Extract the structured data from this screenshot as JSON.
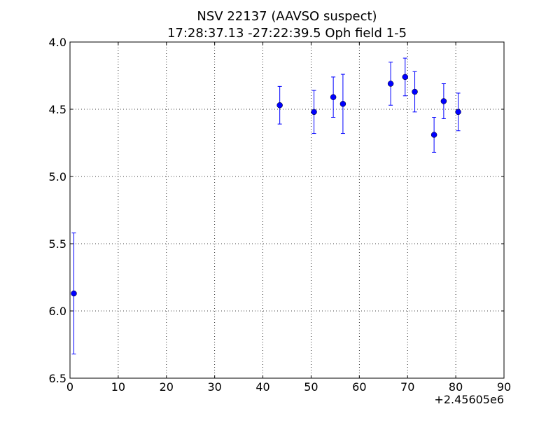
{
  "chart_data": {
    "type": "scatter",
    "title": "NSV 22137 (AAVSO suspect)",
    "subtitle": "17:28:37.13 -27:22:39.5 Oph field 1-5",
    "xlabel": "",
    "ylabel": "",
    "x_offset_label": "+2.45605e6",
    "xlim": [
      0,
      90
    ],
    "ylim": [
      6.5,
      4.0
    ],
    "y_inverted": true,
    "x_ticks": [
      0,
      10,
      20,
      30,
      40,
      50,
      60,
      70,
      80,
      90
    ],
    "y_ticks": [
      4.0,
      4.5,
      5.0,
      5.5,
      6.0,
      6.5
    ],
    "x_tick_labels": [
      "0",
      "10",
      "20",
      "30",
      "40",
      "50",
      "60",
      "70",
      "80",
      "90"
    ],
    "y_tick_labels": [
      "4.0",
      "4.5",
      "5.0",
      "5.5",
      "6.0",
      "6.5"
    ],
    "grid": true,
    "marker_color": "#0000ff",
    "points": [
      {
        "x": 0.8,
        "y": 5.87,
        "err": 0.45
      },
      {
        "x": 43.5,
        "y": 4.47,
        "err": 0.14
      },
      {
        "x": 50.6,
        "y": 4.52,
        "err": 0.16
      },
      {
        "x": 54.6,
        "y": 4.41,
        "err": 0.15
      },
      {
        "x": 56.6,
        "y": 4.46,
        "err": 0.22
      },
      {
        "x": 66.5,
        "y": 4.31,
        "err": 0.16
      },
      {
        "x": 69.5,
        "y": 4.26,
        "err": 0.14
      },
      {
        "x": 71.5,
        "y": 4.37,
        "err": 0.15
      },
      {
        "x": 75.5,
        "y": 4.69,
        "err": 0.13
      },
      {
        "x": 77.5,
        "y": 4.44,
        "err": 0.13
      },
      {
        "x": 80.5,
        "y": 4.52,
        "err": 0.14
      }
    ]
  }
}
